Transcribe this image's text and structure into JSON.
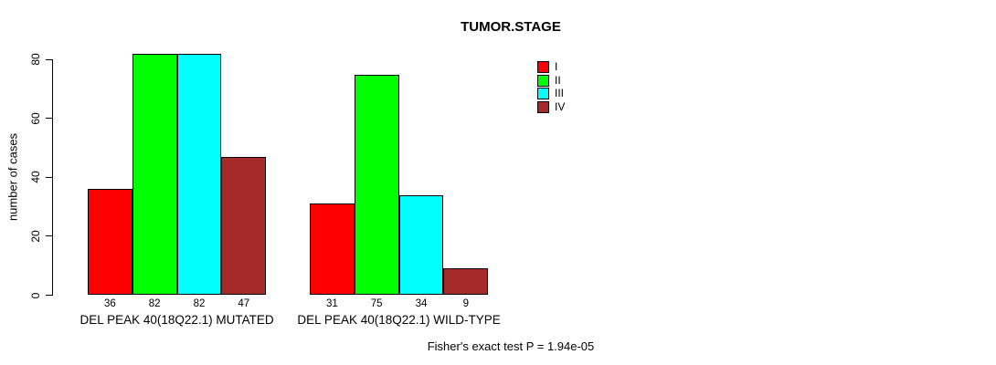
{
  "chart_data": {
    "type": "bar",
    "title": "TUMOR.STAGE",
    "ylabel": "number of cases",
    "ylim": [
      0,
      82
    ],
    "yticks": [
      0,
      20,
      40,
      60,
      80
    ],
    "grid": false,
    "legend_position": "top-right",
    "categories": [
      "DEL PEAK 40(18Q22.1) MUTATED",
      "DEL PEAK 40(18Q22.1) WILD-TYPE"
    ],
    "series": [
      {
        "name": "I",
        "color": "#ff0000",
        "values": [
          36,
          31
        ]
      },
      {
        "name": "II",
        "color": "#00ff00",
        "values": [
          82,
          75
        ]
      },
      {
        "name": "III",
        "color": "#00ffff",
        "values": [
          82,
          34
        ]
      },
      {
        "name": "IV",
        "color": "#a52a2a",
        "values": [
          47,
          9
        ]
      }
    ],
    "bar_value_labels_shown": true,
    "annotation": "Fisher's exact test P = 1.94e-05"
  }
}
